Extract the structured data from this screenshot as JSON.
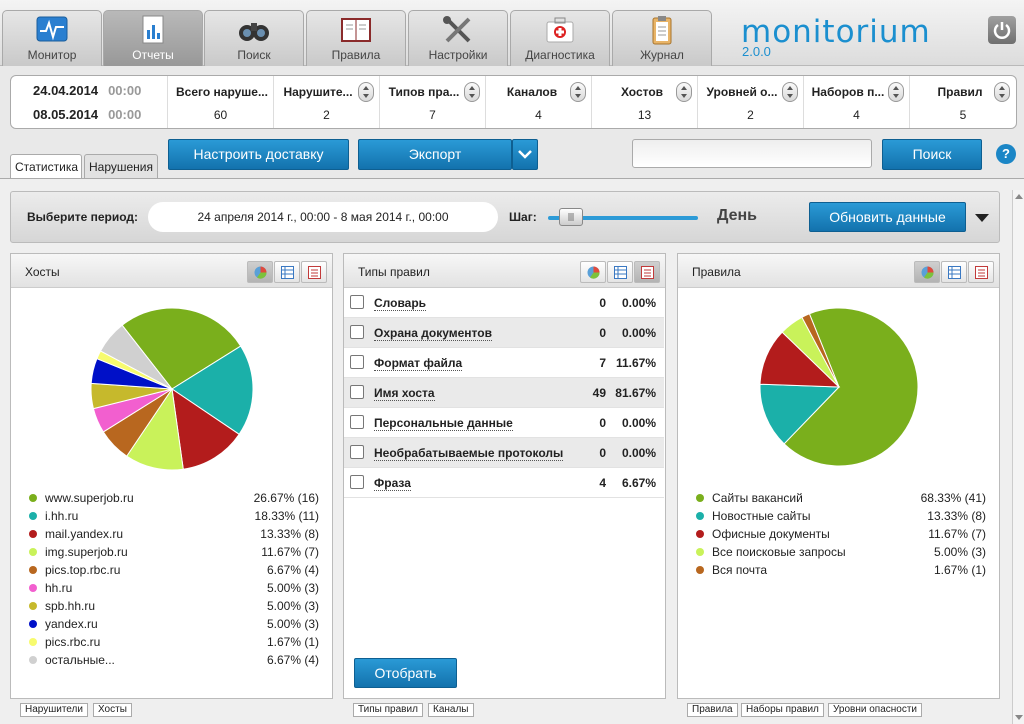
{
  "app": {
    "logo": "monitorium",
    "version": "2.0.0"
  },
  "nav": {
    "tabs": [
      {
        "label": "Монитор",
        "icon": "monitor-icon"
      },
      {
        "label": "Отчеты",
        "icon": "report-icon",
        "active": true
      },
      {
        "label": "Поиск",
        "icon": "binoculars-icon"
      },
      {
        "label": "Правила",
        "icon": "rules-book-icon"
      },
      {
        "label": "Настройки",
        "icon": "tools-icon"
      },
      {
        "label": "Диагностика",
        "icon": "first-aid-icon"
      },
      {
        "label": "Журнал",
        "icon": "clipboard-icon"
      }
    ]
  },
  "summary": {
    "date_from": "24.04.2014",
    "time_from": "00:00",
    "date_to": "08.05.2014",
    "time_to": "00:00",
    "columns": [
      {
        "label": "Всего наруше...",
        "value": "60"
      },
      {
        "label": "Нарушите...",
        "value": "2"
      },
      {
        "label": "Типов пра...",
        "value": "7"
      },
      {
        "label": "Каналов",
        "value": "4"
      },
      {
        "label": "Хостов",
        "value": "13"
      },
      {
        "label": "Уровней о...",
        "value": "2"
      },
      {
        "label": "Наборов п...",
        "value": "4"
      },
      {
        "label": "Правил",
        "value": "5"
      }
    ]
  },
  "toolbar": {
    "tabs": [
      "Статистика",
      "Нарушения"
    ],
    "delivery_label": "Настроить доставку",
    "export_label": "Экспорт",
    "search_value": "",
    "search_label": "Поиск",
    "help_label": "?"
  },
  "period": {
    "label": "Выберите период:",
    "range": "24 апреля 2014 г., 00:00 - 8 мая 2014 г., 00:00",
    "step_label": "Шаг:",
    "step_unit": "День",
    "step_level": 0.15,
    "refresh_label": "Обновить данные"
  },
  "hosts": {
    "title": "Хосты",
    "colors": [
      "#7aaf1c",
      "#1bb0a9",
      "#b31c1c",
      "#c9f25a",
      "#b8671f",
      "#f25fcf",
      "#c6b92c",
      "#0010c8",
      "#f7fb6e",
      "#d0d0d0"
    ],
    "items": [
      {
        "name": "www.superjob.ru",
        "pct": "26.67% (16)",
        "value": 16
      },
      {
        "name": "i.hh.ru",
        "pct": "18.33% (11)",
        "value": 11
      },
      {
        "name": "mail.yandex.ru",
        "pct": "13.33% (8)",
        "value": 8
      },
      {
        "name": "img.superjob.ru",
        "pct": "11.67% (7)",
        "value": 7
      },
      {
        "name": "pics.top.rbc.ru",
        "pct": "6.67% (4)",
        "value": 4
      },
      {
        "name": "hh.ru",
        "pct": "5.00% (3)",
        "value": 3
      },
      {
        "name": "spb.hh.ru",
        "pct": "5.00% (3)",
        "value": 3
      },
      {
        "name": "yandex.ru",
        "pct": "5.00% (3)",
        "value": 3
      },
      {
        "name": "pics.rbc.ru",
        "pct": "1.67% (1)",
        "value": 1
      },
      {
        "name": "остальные...",
        "pct": "6.67% (4)",
        "value": 4
      }
    ],
    "bottom_tabs": [
      "Нарушители",
      "Хосты"
    ]
  },
  "rule_types": {
    "title": "Типы правил",
    "rows": [
      {
        "name": "Словарь",
        "count": "0",
        "pct": "0.00%"
      },
      {
        "name": "Охрана документов",
        "count": "0",
        "pct": "0.00%"
      },
      {
        "name": "Формат файла",
        "count": "7",
        "pct": "11.67%"
      },
      {
        "name": "Имя хоста",
        "count": "49",
        "pct": "81.67%"
      },
      {
        "name": "Персональные данные",
        "count": "0",
        "pct": "0.00%"
      },
      {
        "name": "Необрабатываемые протоколы",
        "count": "0",
        "pct": "0.00%"
      },
      {
        "name": "Фраза",
        "count": "4",
        "pct": "6.67%"
      }
    ],
    "select_label": "Отобрать",
    "bottom_tabs": [
      "Типы правил",
      "Каналы"
    ]
  },
  "rules": {
    "title": "Правила",
    "colors": [
      "#7aaf1c",
      "#1bb0a9",
      "#b31c1c",
      "#c9f25a",
      "#b8671f"
    ],
    "items": [
      {
        "name": "Сайты вакансий",
        "pct": "68.33% (41)",
        "value": 41
      },
      {
        "name": "Новостные сайты",
        "pct": "13.33% (8)",
        "value": 8
      },
      {
        "name": "Офисные документы",
        "pct": "11.67% (7)",
        "value": 7
      },
      {
        "name": "Все поисковые запросы",
        "pct": "5.00% (3)",
        "value": 3
      },
      {
        "name": "Вся почта",
        "pct": "1.67% (1)",
        "value": 1
      }
    ],
    "bottom_tabs": [
      "Правила",
      "Наборы правил",
      "Уровни опасности"
    ]
  },
  "chart_data": [
    {
      "type": "pie",
      "categories": [
        "www.superjob.ru",
        "i.hh.ru",
        "mail.yandex.ru",
        "img.superjob.ru",
        "pics.top.rbc.ru",
        "hh.ru",
        "spb.hh.ru",
        "yandex.ru",
        "pics.rbc.ru",
        "остальные..."
      ],
      "values": [
        16,
        11,
        8,
        7,
        4,
        3,
        3,
        3,
        1,
        4
      ],
      "title": "Хосты"
    },
    {
      "type": "pie",
      "categories": [
        "Сайты вакансий",
        "Новостные сайты",
        "Офисные документы",
        "Все поисковые запросы",
        "Вся почта"
      ],
      "values": [
        41,
        8,
        7,
        3,
        1
      ],
      "title": "Правила"
    }
  ]
}
